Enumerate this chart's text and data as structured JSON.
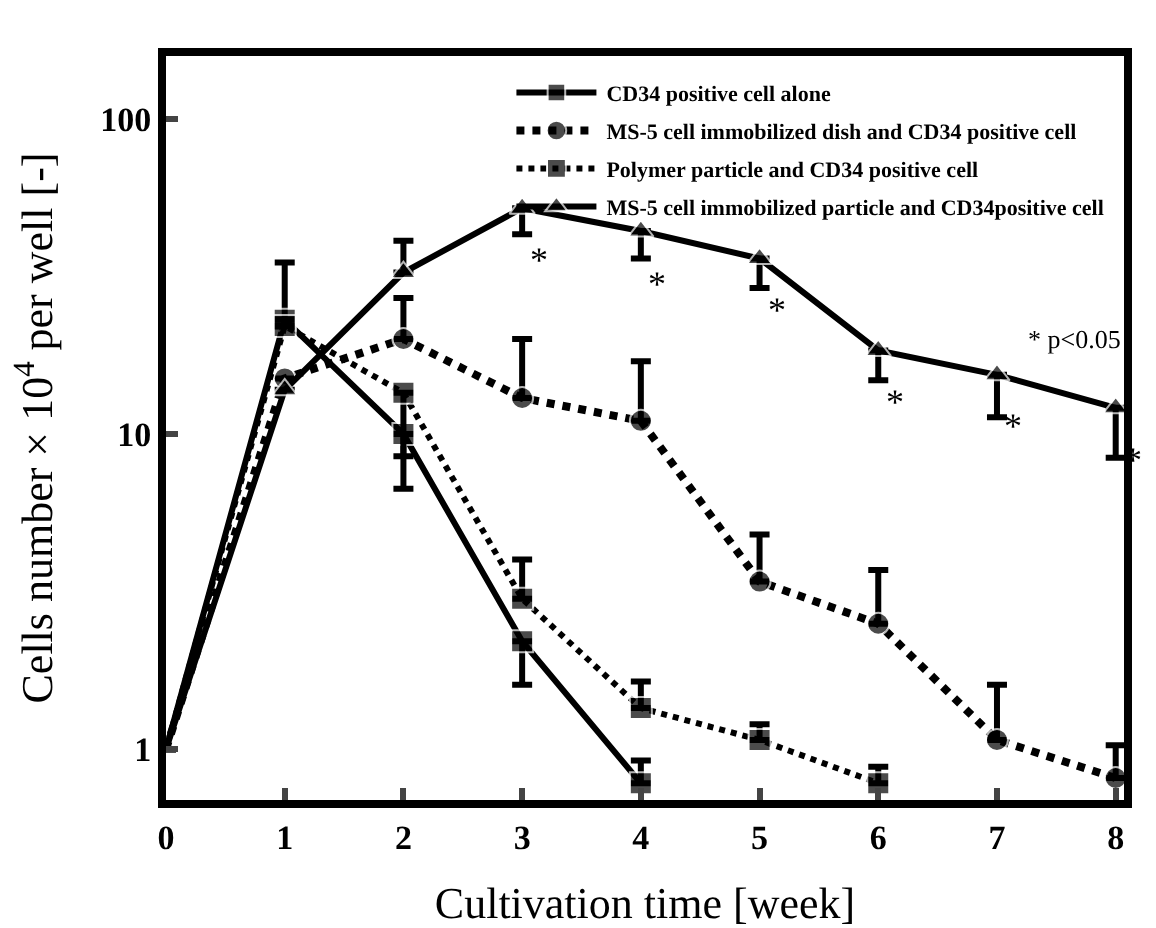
{
  "chart_data": {
    "type": "line",
    "xlabel": "Cultivation time [week]",
    "ylabel": "Cells number × 10$^{4}$ per well [-]",
    "x": [
      0,
      1,
      2,
      3,
      4,
      5,
      6,
      7,
      8
    ],
    "xlim": [
      0,
      8.07
    ],
    "xticks": [
      0,
      1,
      2,
      3,
      4,
      5,
      6,
      7,
      8
    ],
    "ylim": [
      0.69,
      158
    ],
    "yticks": [
      1,
      10,
      100
    ],
    "log": true,
    "grid": false,
    "legend": "top right",
    "series": [
      {
        "name": "CD34 positive cell alone",
        "color": "#000000",
        "marker": "square",
        "line_style": "solid",
        "x": [
          0,
          1,
          2,
          3,
          4
        ],
        "values": [
          1.0,
          23,
          10,
          2.2,
          0.78
        ],
        "errors": [
          null,
          [
            23,
            35
          ],
          [
            6.7,
            10
          ],
          [
            1.6,
            2.2
          ],
          [
            0.78,
            0.92
          ]
        ]
      },
      {
        "name": "MS-5 cell immobilized dish and CD34 positive cell",
        "color": "#000000",
        "marker": "circle",
        "line_style": "dashed",
        "values": [
          1.0,
          15,
          20,
          13,
          11,
          3.4,
          2.5,
          1.07,
          0.81
        ],
        "errors": [
          null,
          null,
          [
            20,
            27
          ],
          [
            13,
            20
          ],
          [
            11,
            17
          ],
          [
            3.4,
            4.8
          ],
          [
            2.5,
            3.7
          ],
          [
            1.07,
            1.6
          ],
          [
            0.81,
            1.03
          ]
        ]
      },
      {
        "name": "Polymer particle and CD34 positive cell",
        "color": "#000000",
        "marker": "square",
        "line_style": "dotted",
        "x": [
          0,
          1,
          2,
          3,
          4,
          5,
          6
        ],
        "values": [
          1.0,
          22,
          13.5,
          3.0,
          1.35,
          1.07,
          0.78
        ],
        "errors": [
          null,
          null,
          [
            8.5,
            13.5
          ],
          [
            3.0,
            4.0
          ],
          [
            1.35,
            1.64
          ],
          [
            1.07,
            1.2
          ],
          [
            0.78,
            0.88
          ]
        ]
      },
      {
        "name": "MS-5 cell immobilized particle and CD34positive cell",
        "color": "#000000",
        "marker": "triangle",
        "line_style": "solid",
        "values": [
          1.0,
          13.8,
          32.5,
          52,
          44,
          36,
          18.4,
          15.4,
          12.1
        ],
        "errors": [
          null,
          null,
          [
            32.5,
            41
          ],
          [
            43,
            52
          ],
          [
            36,
            44
          ],
          [
            29,
            36
          ],
          [
            14.8,
            18.4
          ],
          [
            11.3,
            15.4
          ],
          [
            8.4,
            12.1
          ]
        ]
      }
    ],
    "annotations": [
      {
        "text": "*",
        "x": 3,
        "y": 52
      },
      {
        "text": "*",
        "x": 4,
        "y": 44
      },
      {
        "text": "*",
        "x": 5,
        "y": 36
      },
      {
        "text": "*",
        "x": 6,
        "y": 18.4
      },
      {
        "text": "*",
        "x": 7,
        "y": 15.4
      },
      {
        "text": "*",
        "x": 8,
        "y": 12.1
      },
      "* p<0.05"
    ]
  }
}
